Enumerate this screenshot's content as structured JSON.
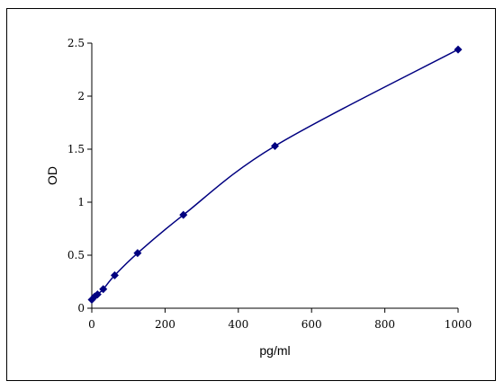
{
  "chart_data": {
    "type": "line",
    "title": "",
    "xlabel": "pg/ml",
    "ylabel": "OD",
    "xlim": [
      0,
      1000
    ],
    "ylim": [
      0,
      2.5
    ],
    "x_ticks": [
      0,
      200,
      400,
      600,
      800,
      1000
    ],
    "x_tick_labels": [
      "0",
      "200",
      "400",
      "600",
      "800",
      "1000"
    ],
    "y_ticks": [
      0,
      0.5,
      1,
      1.5,
      2,
      2.5
    ],
    "y_tick_labels": [
      "0",
      "0.5",
      "1",
      "1.5",
      "2",
      "2.5"
    ],
    "grid": false,
    "legend": "none",
    "series": [
      {
        "marker": "diamond",
        "smooth": true,
        "color": "#000080",
        "x": [
          0,
          7.8,
          15.6,
          31.25,
          62.5,
          125,
          250,
          500,
          1000
        ],
        "y": [
          0.08,
          0.11,
          0.13,
          0.18,
          0.31,
          0.52,
          0.88,
          1.53,
          2.44
        ]
      }
    ]
  }
}
